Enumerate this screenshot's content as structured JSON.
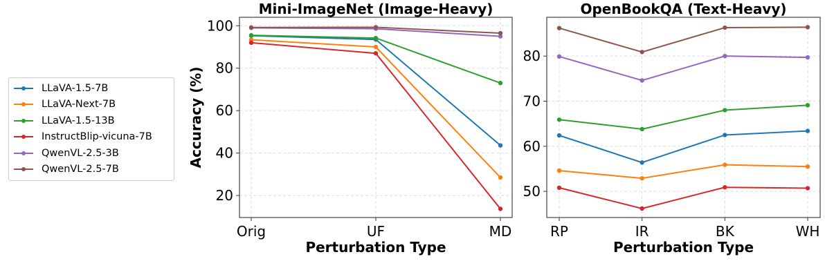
{
  "legend": {
    "placement": "left",
    "entries": [
      "LLaVA-1.5-7B",
      "LLaVA-Next-7B",
      "LLaVA-1.5-13B",
      "InstructBlip-vicuna-7B",
      "QwenVL-2.5-3B",
      "QwenVL-2.5-7B"
    ]
  },
  "colors": [
    "#1f77b4",
    "#ff7f0e",
    "#2ca02c",
    "#d62728",
    "#9467bd",
    "#8c564b"
  ],
  "chart_data": [
    {
      "type": "line",
      "title": "Mini-ImageNet (Image-Heavy)",
      "xlabel": "Perturbation Type",
      "ylabel": "Accuracy (%)",
      "categories": [
        "Orig",
        "UF",
        "MD"
      ],
      "ylim": [
        9.6,
        104
      ],
      "yticks": [
        20,
        40,
        60,
        80,
        100
      ],
      "grid": true,
      "series": [
        {
          "name": "LLaVA-1.5-7B",
          "values": [
            95.3,
            93.5,
            43.6
          ]
        },
        {
          "name": "LLaVA-Next-7B",
          "values": [
            93.4,
            90.0,
            28.5
          ]
        },
        {
          "name": "LLaVA-1.5-13B",
          "values": [
            95.5,
            94.2,
            73.0
          ]
        },
        {
          "name": "InstructBlip-vicuna-7B",
          "values": [
            92.0,
            87.0,
            13.7
          ]
        },
        {
          "name": "QwenVL-2.5-3B",
          "values": [
            99.0,
            98.6,
            95.0
          ]
        },
        {
          "name": "QwenVL-2.5-7B",
          "values": [
            99.2,
            99.3,
            96.5
          ]
        }
      ]
    },
    {
      "type": "line",
      "title": "OpenBookQA (Text-Heavy)",
      "xlabel": "Perturbation Type",
      "ylabel": "",
      "categories": [
        "RP",
        "IR",
        "BK",
        "WH"
      ],
      "ylim": [
        44.2,
        88.6
      ],
      "yticks": [
        50,
        60,
        70,
        80
      ],
      "grid": true,
      "series": [
        {
          "name": "LLaVA-1.5-7B",
          "values": [
            62.4,
            56.4,
            62.5,
            63.4
          ]
        },
        {
          "name": "LLaVA-Next-7B",
          "values": [
            54.6,
            52.9,
            55.9,
            55.5
          ]
        },
        {
          "name": "LLaVA-1.5-13B",
          "values": [
            65.9,
            63.8,
            68.0,
            69.1
          ]
        },
        {
          "name": "InstructBlip-vicuna-7B",
          "values": [
            50.8,
            46.2,
            50.9,
            50.7
          ]
        },
        {
          "name": "QwenVL-2.5-3B",
          "values": [
            79.9,
            74.6,
            80.0,
            79.7
          ]
        },
        {
          "name": "QwenVL-2.5-7B",
          "values": [
            86.2,
            80.9,
            86.3,
            86.4
          ]
        }
      ]
    }
  ]
}
